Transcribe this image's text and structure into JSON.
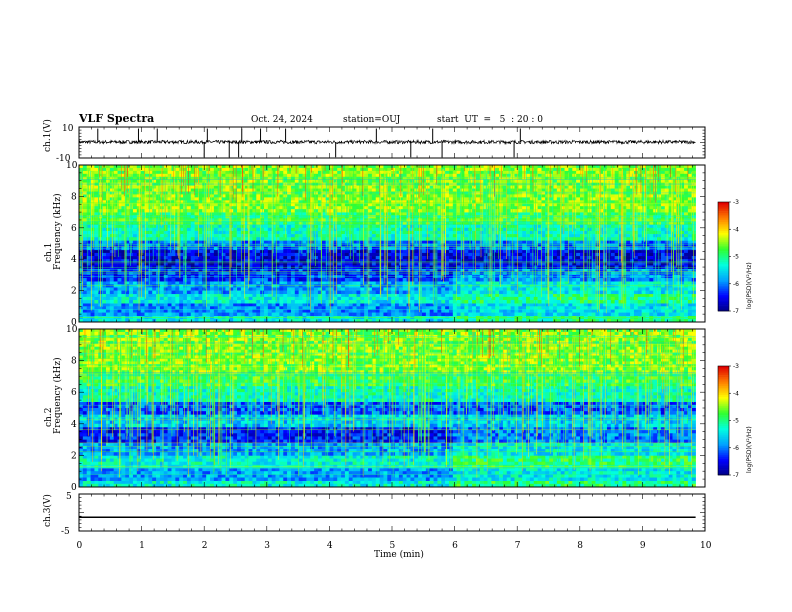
{
  "header": {
    "title": "VLF Spectra",
    "date": "Oct. 24, 2024",
    "station": "station=OUJ",
    "start": "start  UT  =   5  : 20 : 0"
  },
  "colors": {
    "colormap": [
      "#000080",
      "#0000ff",
      "#00a0ff",
      "#00ffe0",
      "#30ff30",
      "#ffff00",
      "#ff8000",
      "#e00000",
      "#ffffff"
    ]
  },
  "chart_data": [
    {
      "type": "line",
      "name": "waveform-ch1",
      "ylabel": "ch.1(V)",
      "ylim": [
        -10,
        10
      ],
      "yticks": [
        "10",
        "-10"
      ],
      "baseline_v": 0.3,
      "spikes_min": [
        0.3,
        0.95,
        1.25,
        2.0,
        2.05,
        2.4,
        2.55,
        2.6,
        2.9,
        3.3,
        4.1,
        4.75,
        5.3,
        5.65,
        5.8,
        6.95,
        7.05
      ]
    },
    {
      "type": "heatmap",
      "name": "spectrogram-ch1",
      "ylabel_lines": [
        "ch.1",
        "Frequency  (kHz)"
      ],
      "ylim": [
        0,
        10
      ],
      "yticks": [
        "0",
        "2",
        "4",
        "6",
        "8",
        "10"
      ],
      "bands_khz": [
        {
          "from": 0,
          "to": 0.4,
          "level": 0.4
        },
        {
          "from": 0.4,
          "to": 1.2,
          "level": 0.28
        },
        {
          "from": 1.2,
          "to": 1.8,
          "level": 0.4
        },
        {
          "from": 1.8,
          "to": 2.6,
          "level": 0.3
        },
        {
          "from": 2.6,
          "to": 3.4,
          "level": 0.18
        },
        {
          "from": 3.4,
          "to": 4.6,
          "level": 0.12
        },
        {
          "from": 4.6,
          "to": 5.2,
          "level": 0.25
        },
        {
          "from": 5.2,
          "to": 6.2,
          "level": 0.45
        },
        {
          "from": 6.2,
          "to": 7.0,
          "level": 0.55
        },
        {
          "from": 7.0,
          "to": 10,
          "level": 0.62
        }
      ],
      "colorbar": {
        "label": "log(PSD)(V²/Hz)",
        "ticks": [
          "-3",
          "-4",
          "-5",
          "-6",
          "-7"
        ],
        "range": [
          -7,
          -3
        ]
      }
    },
    {
      "type": "heatmap",
      "name": "spectrogram-ch2",
      "ylabel_lines": [
        "ch.2",
        "Frequency  (kHz)"
      ],
      "ylim": [
        0,
        10
      ],
      "yticks": [
        "0",
        "2",
        "4",
        "6",
        "8",
        "10"
      ],
      "bands_khz": [
        {
          "from": 0,
          "to": 0.4,
          "level": 0.42
        },
        {
          "from": 0.4,
          "to": 1.2,
          "level": 0.3
        },
        {
          "from": 1.2,
          "to": 2.0,
          "level": 0.42
        },
        {
          "from": 2.0,
          "to": 2.8,
          "level": 0.3
        },
        {
          "from": 2.8,
          "to": 3.8,
          "level": 0.16
        },
        {
          "from": 3.8,
          "to": 4.6,
          "level": 0.35
        },
        {
          "from": 4.6,
          "to": 5.4,
          "level": 0.22
        },
        {
          "from": 5.4,
          "to": 6.4,
          "level": 0.45
        },
        {
          "from": 6.4,
          "to": 7.2,
          "level": 0.55
        },
        {
          "from": 7.2,
          "to": 10,
          "level": 0.62
        }
      ],
      "colorbar": {
        "label": "log(PSD)(V²/Hz)",
        "ticks": [
          "-3",
          "-4",
          "-5",
          "-6",
          "-7"
        ],
        "range": [
          -7,
          -3
        ]
      }
    },
    {
      "type": "line",
      "name": "waveform-ch3",
      "ylabel": "ch.3(V)",
      "ylim": [
        -5,
        5
      ],
      "yticks": [
        "5",
        "-5"
      ],
      "baseline_v": -1.3
    }
  ],
  "time_axis": {
    "xlabel": "Time  (min)",
    "xlim": [
      0,
      10
    ],
    "ticks": [
      "0",
      "1",
      "2",
      "3",
      "4",
      "5",
      "6",
      "7",
      "8",
      "9",
      "10"
    ],
    "data_end_min": 9.85
  }
}
